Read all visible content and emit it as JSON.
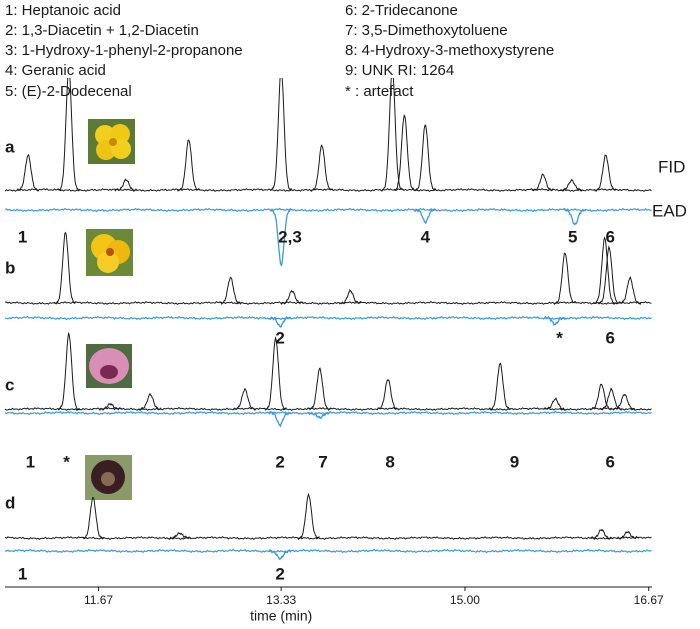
{
  "chart_data": {
    "type": "chromatogram",
    "compounds": [
      "1: Heptanoic acid",
      "2: 1,3-Diacetin + 1,2-Diacetin",
      "3: 1-Hydroxy-1-phenyl-2-propanone",
      "4: Geranic acid",
      "5: (E)-2-Dodecenal",
      "6: 2-Tridecanone",
      "7: 3,5-Dimethoxytoluene",
      "8: 4-Hydroxy-3-methoxystyrene",
      "9: UNK RI: 1264",
      "* : artefact"
    ],
    "trace_labels": [
      "FID",
      "EAD"
    ],
    "x_label": "time (min)",
    "xlim": [
      10.82,
      16.7
    ],
    "xticks": [
      11.67,
      13.33,
      {
        "value": 15,
        "label": "15.00"
      },
      16.67
    ],
    "fid_color": "#1a1a1a",
    "ead_color": "#3b9bd9",
    "panels": [
      {
        "letter": "a",
        "fid": [
          {
            "t": 11.03,
            "h": 35
          },
          {
            "t": 11.4,
            "h": 120
          },
          {
            "t": 11.92,
            "h": 10
          },
          {
            "t": 12.49,
            "h": 50
          },
          {
            "t": 13.33,
            "h": 120
          },
          {
            "t": 13.7,
            "h": 45
          },
          {
            "t": 14.34,
            "h": 120
          },
          {
            "t": 14.45,
            "h": 75
          },
          {
            "t": 14.64,
            "h": 65
          },
          {
            "t": 15.71,
            "h": 15
          },
          {
            "t": 15.97,
            "h": 10
          },
          {
            "t": 16.28,
            "h": 35
          }
        ],
        "ead": [
          {
            "t": 13.33,
            "h": 55
          },
          {
            "t": 14.64,
            "h": 12
          },
          {
            "t": 16.0,
            "h": 15
          }
        ],
        "labels": [
          {
            "text": "1",
            "t": 10.98
          },
          {
            "text": "2,3",
            "t": 13.41
          },
          {
            "text": "4",
            "t": 14.64
          },
          {
            "text": "5",
            "t": 15.98
          },
          {
            "text": "6",
            "t": 16.32
          }
        ]
      },
      {
        "letter": "b",
        "fid": [
          {
            "t": 11.37,
            "h": 70
          },
          {
            "t": 12.87,
            "h": 25
          },
          {
            "t": 13.43,
            "h": 12
          },
          {
            "t": 13.96,
            "h": 12
          },
          {
            "t": 15.91,
            "h": 50
          },
          {
            "t": 16.27,
            "h": 65
          },
          {
            "t": 16.31,
            "h": 55
          },
          {
            "t": 16.5,
            "h": 25
          }
        ],
        "ead": [
          {
            "t": 13.32,
            "h": 8
          },
          {
            "t": 15.82,
            "h": 6
          }
        ],
        "labels": [
          {
            "text": "2",
            "t": 13.32
          },
          {
            "text": "*",
            "t": 15.86
          },
          {
            "text": "6",
            "t": 16.32
          }
        ]
      },
      {
        "letter": "c",
        "fid": [
          {
            "t": 11.4,
            "h": 75
          },
          {
            "t": 11.78,
            "h": 5
          },
          {
            "t": 12.14,
            "h": 15
          },
          {
            "t": 13.0,
            "h": 20
          },
          {
            "t": 13.28,
            "h": 70
          },
          {
            "t": 13.68,
            "h": 40
          },
          {
            "t": 14.3,
            "h": 30
          },
          {
            "t": 15.32,
            "h": 45
          },
          {
            "t": 15.82,
            "h": 10
          },
          {
            "t": 16.24,
            "h": 25
          },
          {
            "t": 16.33,
            "h": 20
          },
          {
            "t": 16.45,
            "h": 15
          }
        ],
        "ead": [
          {
            "t": 13.32,
            "h": 12
          },
          {
            "t": 13.68,
            "h": 5
          }
        ],
        "labels": [
          {
            "text": "1",
            "t": 11.05
          },
          {
            "text": "*",
            "t": 11.38
          },
          {
            "text": "2",
            "t": 13.32
          },
          {
            "text": "7",
            "t": 13.71
          },
          {
            "text": "8",
            "t": 14.32
          },
          {
            "text": "9",
            "t": 15.45
          },
          {
            "text": "6",
            "t": 16.32
          }
        ]
      },
      {
        "letter": "d",
        "fid": [
          {
            "t": 11.62,
            "h": 40
          },
          {
            "t": 12.41,
            "h": 5
          },
          {
            "t": 13.58,
            "h": 43
          },
          {
            "t": 16.24,
            "h": 8
          },
          {
            "t": 16.48,
            "h": 6
          }
        ],
        "ead": [
          {
            "t": 13.32,
            "h": 8
          }
        ],
        "labels": [
          {
            "text": "1",
            "t": 10.98
          },
          {
            "text": "2",
            "t": 13.32
          }
        ]
      }
    ]
  }
}
